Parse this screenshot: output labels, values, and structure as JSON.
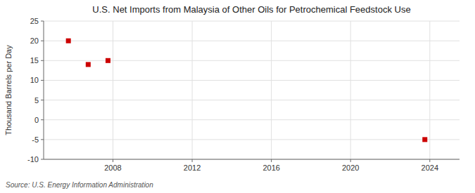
{
  "chart_data": {
    "type": "scatter",
    "title": "U.S. Net Imports from Malaysia of Other Oils for Petrochemical Feedstock Use",
    "y_label": "Thousand Barrels per Day",
    "source": "Source: U.S. Energy Information Administration",
    "x": [
      2005.75,
      2006.75,
      2007.75,
      2023.75
    ],
    "values": [
      20.0,
      14.0,
      15.0,
      -5.0
    ],
    "color": "#cc0000",
    "marker": "square",
    "xlim": [
      2004.5,
      2025.5
    ],
    "ylim": [
      -10,
      25
    ],
    "xticks": [
      2008,
      2012,
      2016,
      2020,
      2024
    ],
    "yticks": [
      -10,
      -5,
      0,
      5,
      10,
      15,
      20,
      25
    ],
    "grid": true
  }
}
